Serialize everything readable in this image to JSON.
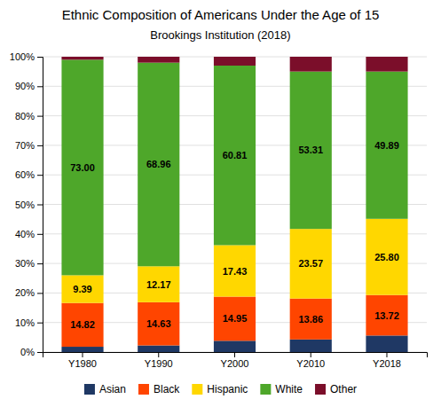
{
  "chart_data": {
    "type": "bar",
    "stacked": true,
    "title": "Ethnic Composition of Americans Under the Age of 15",
    "subtitle": "Brookings Institution (2018)",
    "categories": [
      "Y1980",
      "Y1990",
      "Y2000",
      "Y2010",
      "Y2018"
    ],
    "series": [
      {
        "name": "Asian",
        "color": "#1F3864",
        "values": [
          1.79,
          2.24,
          3.81,
          4.26,
          5.59
        ],
        "data_labels": false
      },
      {
        "name": "Black",
        "color": "#FF4500",
        "values": [
          14.82,
          14.63,
          14.95,
          13.86,
          13.72
        ],
        "data_labels": true,
        "value_labels": [
          "14.82",
          "14.63",
          "14.95",
          "13.86",
          "13.72"
        ]
      },
      {
        "name": "Hispanic",
        "color": "#FFD700",
        "values": [
          9.39,
          12.17,
          17.43,
          23.57,
          25.8
        ],
        "data_labels": true,
        "value_labels": [
          "9.39",
          "12.17",
          "17.43",
          "23.57",
          "25.80"
        ]
      },
      {
        "name": "White",
        "color": "#4EA72A",
        "values": [
          73.0,
          68.96,
          60.81,
          53.31,
          49.89
        ],
        "data_labels": true,
        "value_labels": [
          "73.00",
          "68.96",
          "60.81",
          "53.31",
          "49.89"
        ]
      },
      {
        "name": "Other",
        "color": "#7B0E2A",
        "values": [
          1.0,
          2.0,
          3.0,
          5.0,
          5.0
        ],
        "data_labels": false
      }
    ],
    "ylim": [
      0,
      100
    ],
    "yticks": [
      {
        "value": 0,
        "label": "0%"
      },
      {
        "value": 10,
        "label": "10%"
      },
      {
        "value": 20,
        "label": "20%"
      },
      {
        "value": 30,
        "label": "30%"
      },
      {
        "value": 40,
        "label": "40%"
      },
      {
        "value": 50,
        "label": "50%"
      },
      {
        "value": 60,
        "label": "60%"
      },
      {
        "value": 70,
        "label": "70%"
      },
      {
        "value": 80,
        "label": "80%"
      },
      {
        "value": 90,
        "label": "90%"
      },
      {
        "value": 100,
        "label": "100%"
      }
    ],
    "grid": true,
    "legend": "bottom"
  }
}
